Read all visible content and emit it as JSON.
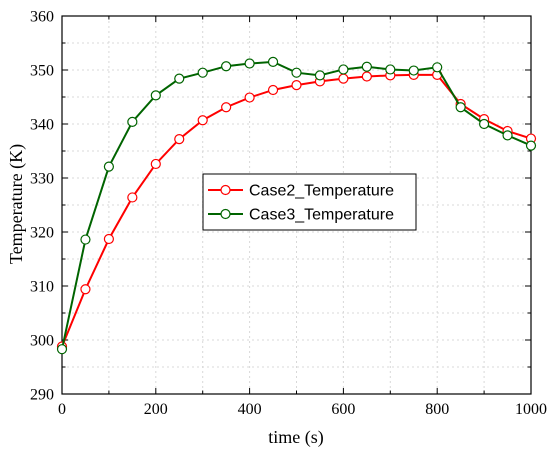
{
  "chart_data": {
    "type": "line",
    "title": "",
    "xlabel": "time (s)",
    "ylabel": "Temperature (K)",
    "xlim": [
      0,
      1000
    ],
    "ylim": [
      290,
      360
    ],
    "xticks": [
      0,
      200,
      400,
      600,
      800,
      1000
    ],
    "yticks": [
      290,
      300,
      310,
      320,
      330,
      340,
      350,
      360
    ],
    "grid": true,
    "legend_position": "center",
    "series": [
      {
        "name": "Case2_Temperature",
        "color": "#ff0000",
        "x": [
          0,
          50,
          100,
          150,
          200,
          250,
          300,
          350,
          400,
          450,
          500,
          550,
          600,
          650,
          700,
          750,
          800,
          850,
          900,
          950,
          1000
        ],
        "y": [
          298.8,
          309.4,
          318.7,
          326.4,
          332.6,
          337.2,
          340.7,
          343.1,
          344.9,
          346.3,
          347.2,
          347.9,
          348.4,
          348.8,
          349.0,
          349.1,
          349.1,
          343.7,
          340.9,
          338.7,
          337.3
        ]
      },
      {
        "name": "Case3_Temperature",
        "color": "#006400",
        "x": [
          0,
          50,
          100,
          150,
          200,
          250,
          300,
          350,
          400,
          450,
          500,
          550,
          600,
          650,
          700,
          750,
          800,
          850,
          900,
          950,
          1000
        ],
        "y": [
          298.3,
          318.6,
          332.1,
          340.4,
          345.3,
          348.4,
          349.5,
          350.7,
          351.2,
          351.5,
          349.5,
          349.0,
          350.1,
          350.6,
          350.1,
          349.9,
          350.5,
          343.1,
          340.0,
          337.9,
          336.0
        ]
      }
    ]
  }
}
